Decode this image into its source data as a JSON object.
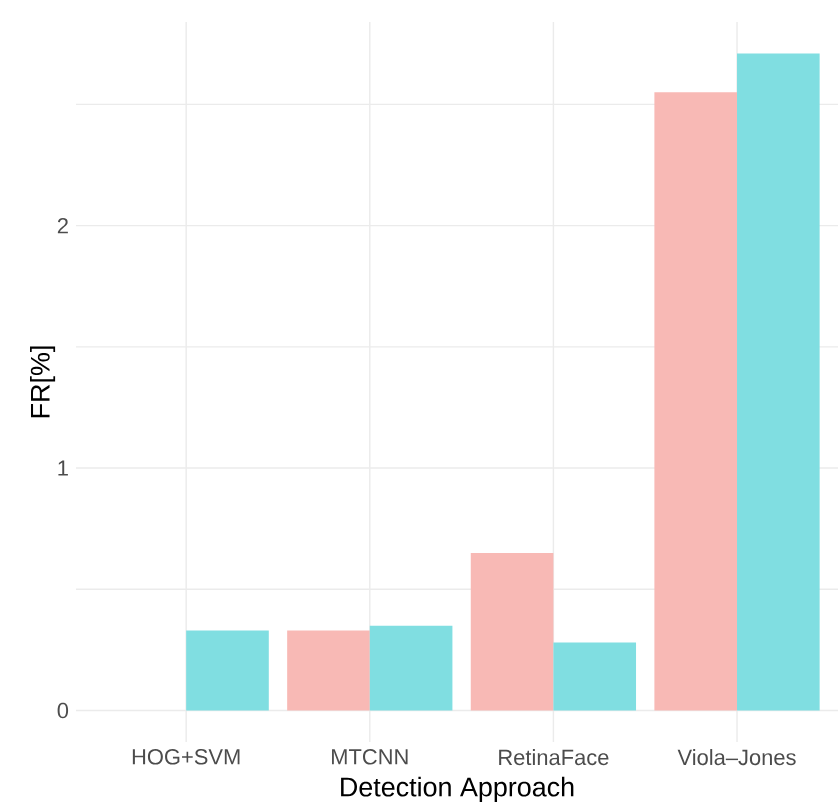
{
  "chart_data": {
    "type": "bar",
    "xlabel": "Detection Approach",
    "ylabel": "FR[%]",
    "categories": [
      "HOG+SVM",
      "MTCNN",
      "RetinaFace",
      "Viola–Jones"
    ],
    "series": [
      {
        "color": "#f8b9b5",
        "values": [
          0,
          0.33,
          0.65,
          2.55
        ]
      },
      {
        "color": "#80dee1",
        "values": [
          0.33,
          0.35,
          0.28,
          2.71
        ]
      }
    ],
    "ylim": [
      -0.13,
      2.84
    ],
    "yticks": [
      0,
      {
        "value": 0.5,
        "label": null
      },
      1,
      {
        "value": 1.5,
        "label": null
      },
      2,
      {
        "value": 2.5,
        "label": null
      }
    ],
    "grid": true
  }
}
